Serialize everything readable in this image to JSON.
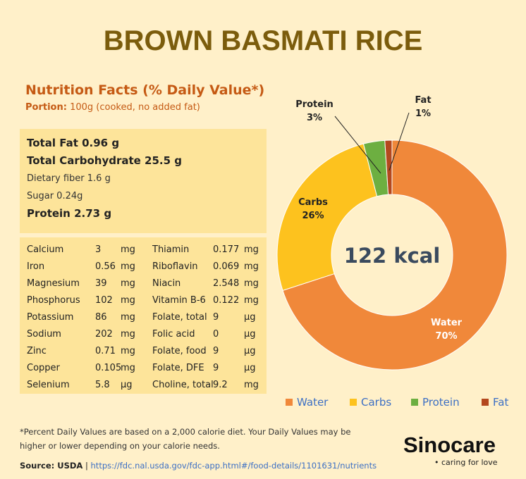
{
  "title": "BROWN BASMATI RICE",
  "nutrition_facts": "Nutrition Facts (% Daily Value*)",
  "portion_label": "Portion:",
  "portion_value": "100g (cooked, no added fat)",
  "macros": [
    {
      "text": "Total Fat 0.96 g",
      "style": "big"
    },
    {
      "text": "Total Carbohydrate 25.5 g",
      "style": "big"
    },
    {
      "text": "Dietary fiber 1.6 g",
      "style": "small"
    },
    {
      "text": "Sugar 0.24g",
      "style": "small"
    },
    {
      "text": "Protein 2.73 g",
      "style": "big"
    }
  ],
  "micronutrients": [
    [
      [
        "Calcium",
        "3",
        "mg"
      ],
      [
        "Thiamin",
        "0.177",
        "mg"
      ]
    ],
    [
      [
        "Iron",
        "0.56",
        "mg"
      ],
      [
        "Riboflavin",
        "0.069",
        "mg"
      ]
    ],
    [
      [
        "Magnesium",
        "39",
        "mg"
      ],
      [
        "Niacin",
        "2.548",
        "mg"
      ]
    ],
    [
      [
        "Phosphorus",
        "102",
        "mg"
      ],
      [
        "Vitamin B-6",
        "0.122",
        "mg"
      ]
    ],
    [
      [
        "Potassium",
        "86",
        "mg"
      ],
      [
        "Folate, total",
        "9",
        "µg"
      ]
    ],
    [
      [
        "Sodium",
        "202",
        "mg"
      ],
      [
        "Folic acid",
        "0",
        "µg"
      ]
    ],
    [
      [
        "Zinc",
        "0.71",
        "mg"
      ],
      [
        "Folate, food",
        "9",
        "µg"
      ]
    ],
    [
      [
        "Copper",
        "0.105",
        "mg"
      ],
      [
        "Folate, DFE",
        "9",
        "µg"
      ]
    ],
    [
      [
        "Selenium",
        "5.8",
        "µg"
      ],
      [
        "Choline, total",
        "9.2",
        "mg"
      ]
    ]
  ],
  "footnote": "*Percent Daily Values are based on a 2,000 calorie diet. Your Daily Values may be higher or lower depending  on your calorie needs.",
  "source_label": "Source: USDA",
  "source_sep": " | ",
  "source_url": "https://fdc.nal.usda.gov/fdc-app.html#/food-details/1101631/nutrients",
  "logo": "Sinocare",
  "tagline": "caring for love",
  "chart_data": {
    "type": "pie",
    "donut": true,
    "center_text": "122 kcal",
    "categories": [
      "Water",
      "Carbs",
      "Protein",
      "Fat"
    ],
    "values": [
      70,
      26,
      3,
      1
    ],
    "labels": [
      "70%",
      "26%",
      "3%",
      "1%"
    ],
    "colors": [
      "#F0883A",
      "#FDC21E",
      "#6DAF41",
      "#B4481E"
    ],
    "legend": "bottom"
  }
}
